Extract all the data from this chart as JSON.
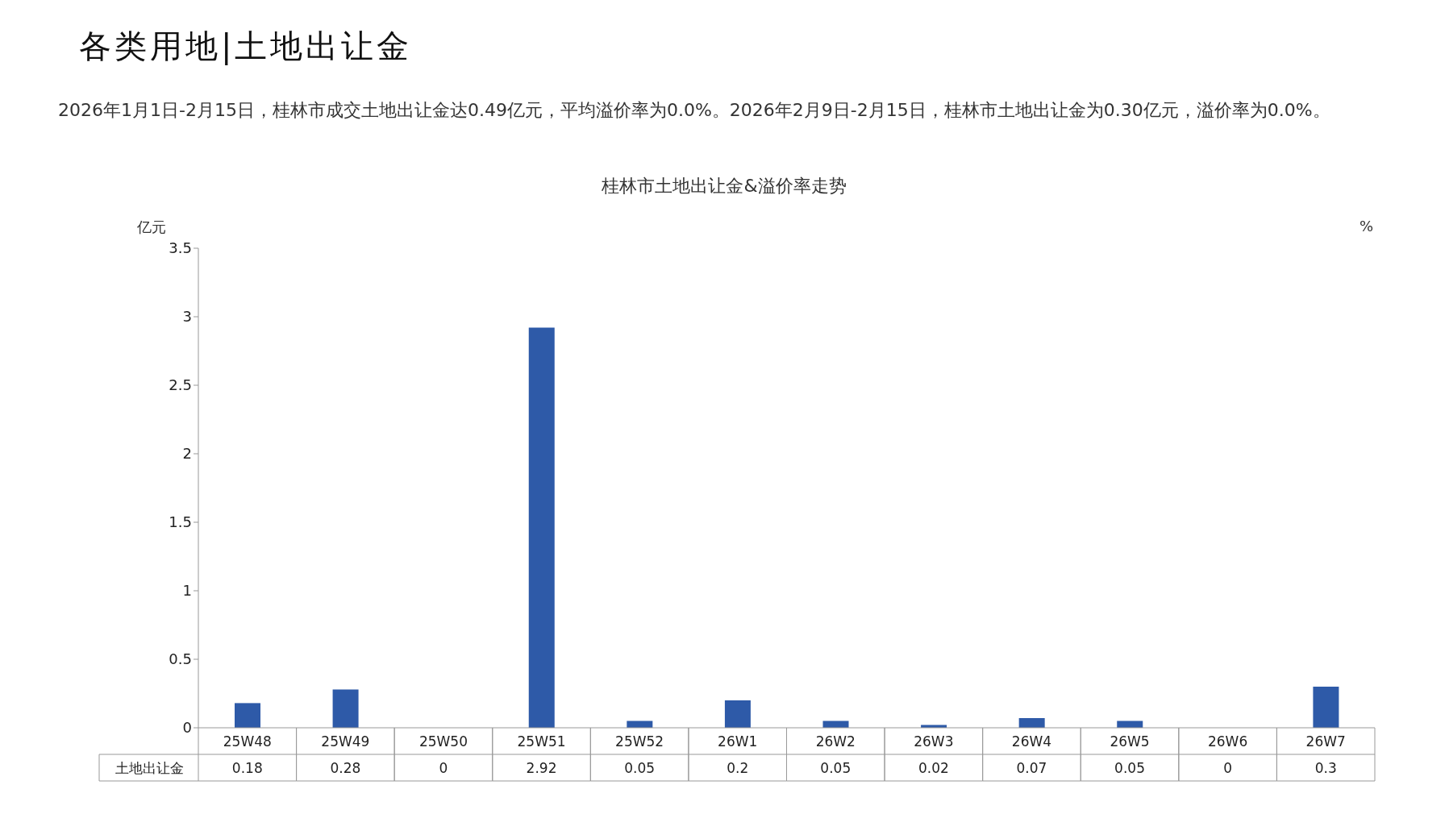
{
  "chart_data": {
    "type": "bar",
    "title": "桂林市土地出让金&溢价率走势",
    "subtitle": "2026年1月1日-2月15日，桂林市成交土地出让金达0.49亿元，平均溢价率为0.0%。2026年2月9日-2月15日，桂林市土地出让金为0.30亿元，溢价率为0.0%。",
    "annotations": [
      "各类用地|土地出让金"
    ],
    "ylabel": "亿元",
    "y2label": "%",
    "categories": [
      "25W48",
      "25W49",
      "25W50",
      "25W51",
      "25W52",
      "26W1",
      "26W2",
      "26W3",
      "26W4",
      "26W5",
      "26W6",
      "26W7"
    ],
    "series": [
      {
        "name": "土地出让金",
        "color": "#2e5aa8",
        "values": [
          0.18,
          0.28,
          0,
          2.92,
          0.05,
          0.2,
          0.05,
          0.02,
          0.07,
          0.05,
          0,
          0.3
        ]
      }
    ],
    "ylim": [
      0,
      3.5
    ],
    "yticks": [
      0,
      0.5,
      1,
      1.5,
      2,
      2.5,
      3,
      3.5
    ],
    "data_labels": true,
    "grid": false
  }
}
